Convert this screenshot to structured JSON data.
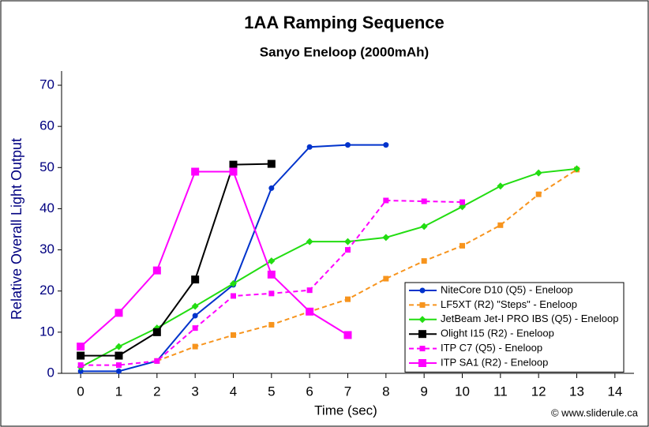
{
  "chart_data": {
    "type": "line",
    "title": "1AA Ramping Sequence",
    "subtitle": "Sanyo Eneloop (2000mAh)",
    "x_label": "Time (sec)",
    "y_label": "Relative Overall Light Output",
    "credit": "© www.sliderule.ca",
    "xlim": [
      -0.5,
      14.5
    ],
    "xticks": [
      0,
      1,
      2,
      3,
      4,
      5,
      6,
      7,
      8,
      9,
      10,
      11,
      12,
      13,
      14
    ],
    "ylim": [
      0,
      70
    ],
    "yticks": [
      0,
      10,
      20,
      30,
      40,
      50,
      60,
      70
    ],
    "legend": "lower-right",
    "series": [
      {
        "name": "NiteCore D10 (Q5) - Eneloop",
        "color": "#0033cc",
        "dash": false,
        "marker": "circle",
        "x": [
          0,
          1,
          2,
          3,
          4,
          5,
          6,
          7,
          8
        ],
        "values": [
          0.5,
          0.5,
          3,
          14,
          21.5,
          45,
          55,
          55.5,
          55.5
        ]
      },
      {
        "name": "LF5XT (R2) \"Steps\" - Eneloop",
        "color": "#f7941d",
        "dash": true,
        "marker": "square",
        "x": [
          2,
          3,
          4,
          5,
          6,
          7,
          8,
          9,
          10,
          11,
          12,
          13
        ],
        "values": [
          3,
          6.5,
          9.3,
          11.8,
          15,
          18,
          23,
          27.3,
          31,
          36,
          43.5,
          49.5
        ]
      },
      {
        "name": "JetBeam Jet-I PRO IBS (Q5) - Eneloop",
        "color": "#22dd11",
        "dash": false,
        "marker": "diamond",
        "x": [
          0,
          1,
          2,
          3,
          4,
          5,
          6,
          7,
          8,
          9,
          10,
          11,
          12,
          13
        ],
        "values": [
          1.5,
          6.5,
          11,
          16.3,
          21.8,
          27.3,
          32,
          32,
          33,
          35.7,
          40.5,
          45.5,
          48.7,
          49.7
        ]
      },
      {
        "name": "Olight I15 (R2) - Eneloop",
        "color": "#000000",
        "dash": false,
        "marker": "bigsquare",
        "x": [
          0,
          1,
          2,
          3,
          4,
          5
        ],
        "values": [
          4.3,
          4.3,
          10,
          22.8,
          50.7,
          50.9
        ]
      },
      {
        "name": "ITP C7 (Q5) - Eneloop",
        "color": "#ff00ff",
        "dash": true,
        "marker": "square",
        "x": [
          0,
          1,
          2,
          3,
          4,
          5,
          6,
          7,
          8,
          9,
          10
        ],
        "values": [
          2,
          2,
          3,
          11,
          18.8,
          19.4,
          20.2,
          30,
          42,
          41.8,
          41.6
        ]
      },
      {
        "name": "ITP SA1 (R2) - Eneloop",
        "color": "#ff00ff",
        "dash": false,
        "marker": "bigsquare",
        "x": [
          0,
          1,
          2,
          3,
          4,
          5,
          6,
          7
        ],
        "values": [
          6.5,
          14.7,
          25,
          49,
          49,
          24,
          15,
          9.3
        ]
      }
    ]
  }
}
